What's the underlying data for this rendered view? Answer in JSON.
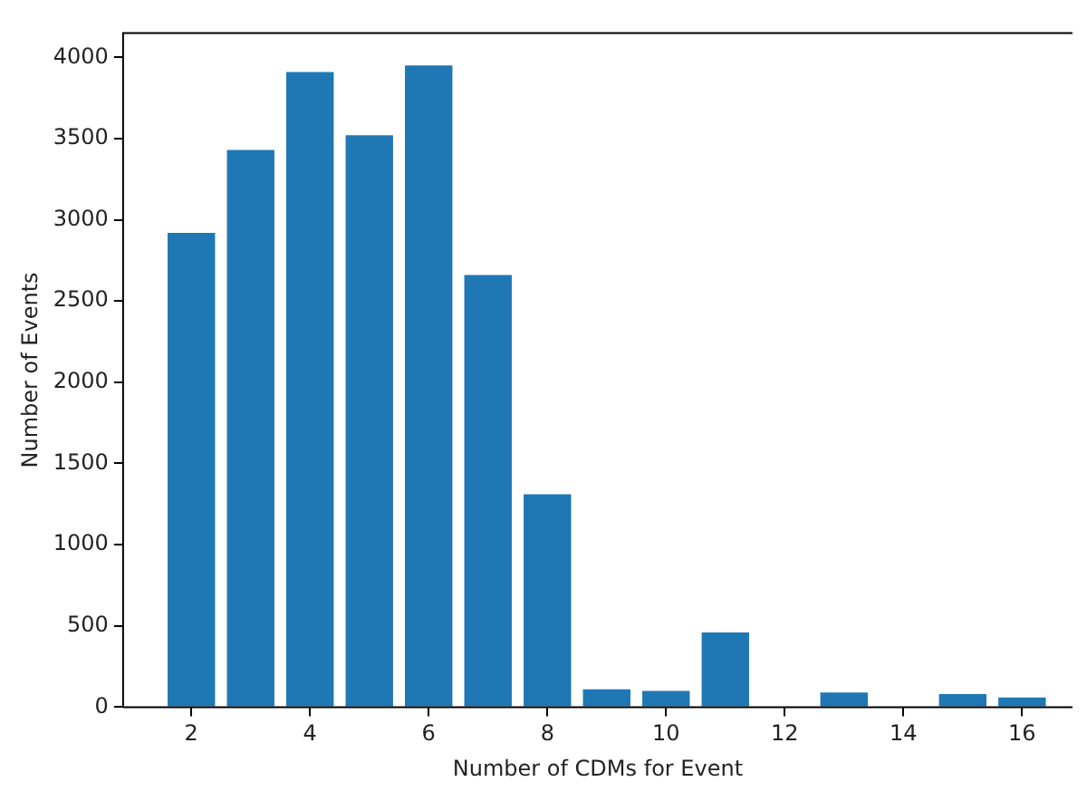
{
  "chart_data": {
    "type": "bar",
    "xlabel": "Number of CDMs for Event",
    "ylabel": "Number of Events",
    "x": [
      2,
      3,
      4,
      5,
      6,
      7,
      8,
      9,
      10,
      11,
      12,
      13,
      14,
      15,
      16
    ],
    "values": [
      2920,
      3430,
      3910,
      3520,
      3950,
      2660,
      1310,
      110,
      100,
      460,
      0,
      90,
      0,
      80,
      60
    ],
    "color": "#1f77b4",
    "xlim": [
      0.85,
      16.85
    ],
    "xticks": [
      2,
      4,
      6,
      8,
      10,
      12,
      14,
      16
    ],
    "ylim": [
      0,
      4150
    ],
    "yticks": [
      0,
      500,
      1000,
      1500,
      2000,
      2500,
      3000,
      3500,
      4000
    ],
    "grid": false,
    "legend": false
  }
}
